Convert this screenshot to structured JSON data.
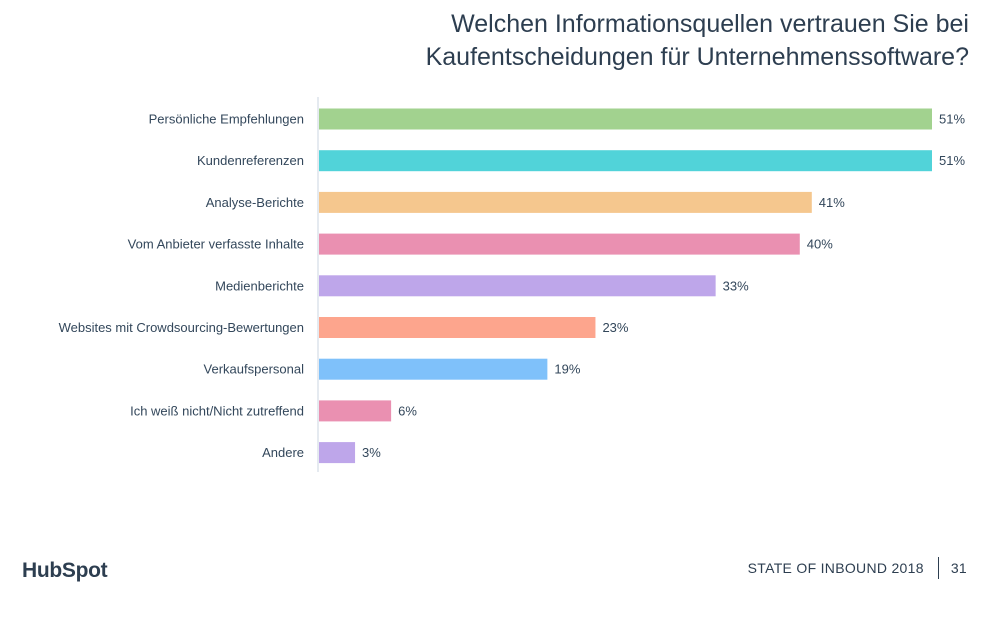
{
  "title": {
    "line1": "Welchen Informationsquellen vertrauen Sie bei",
    "line2": "Kaufentscheidungen für Unternehmenssoftware?"
  },
  "chart_data": {
    "type": "bar",
    "orientation": "horizontal",
    "title": "Welchen Informationsquellen vertrauen Sie bei Kaufentscheidungen für Unternehmenssoftware?",
    "xlabel": "",
    "ylabel": "",
    "xlim": [
      0,
      51
    ],
    "categories": [
      "Persönliche Empfehlungen",
      "Kundenreferenzen",
      "Analyse-Berichte",
      "Vom Anbieter verfasste Inhalte",
      "Medienberichte",
      "Websites mit Crowdsourcing-Bewertungen",
      "Verkaufspersonal",
      "Ich weiß nicht/Nicht zutreffend",
      "Andere"
    ],
    "values": [
      51,
      51,
      41,
      40,
      33,
      23,
      19,
      6,
      3
    ],
    "value_labels": [
      "51%",
      "51%",
      "41%",
      "40%",
      "33%",
      "23%",
      "19%",
      "6%",
      "3%"
    ],
    "colors": [
      "#a2d28f",
      "#51d3d9",
      "#f5c78e",
      "#ea90b1",
      "#bea6ea",
      "#fda58d",
      "#7fc1fa",
      "#ea90b1",
      "#bea6ea"
    ],
    "grid": false
  },
  "footer": {
    "logo": "HubSpot",
    "report": "STATE OF INBOUND 2018",
    "page": "31"
  },
  "colors": {
    "text": "#33475b",
    "title": "#2d3e50",
    "axis": "#cbd6e2"
  }
}
